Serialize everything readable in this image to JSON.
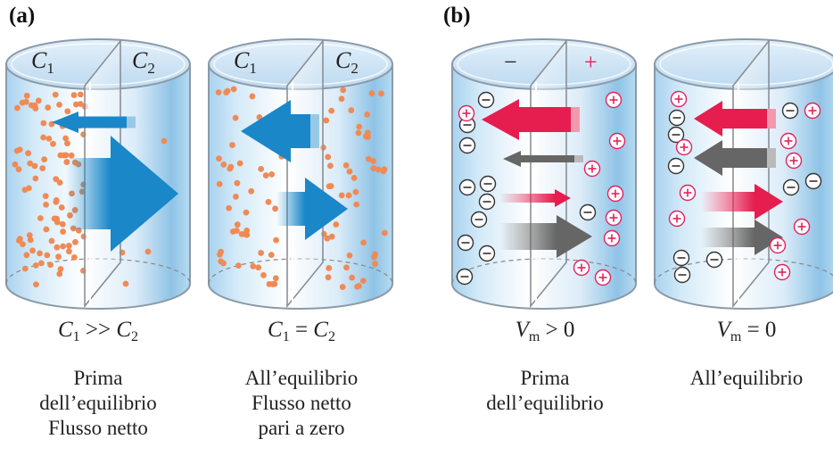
{
  "panels": {
    "a": {
      "letter": "(a)"
    },
    "b": {
      "letter": "(b)"
    }
  },
  "cylinders": [
    {
      "left_label": "C",
      "left_sub": "1",
      "right_label": "C",
      "right_sub": "2",
      "equation": {
        "lhs": "C",
        "lhs_sub": "1",
        "op": ">>",
        "rhs": "C",
        "rhs_sub": "2"
      },
      "caption": [
        "Prima",
        "dell’equilibrio",
        "Flusso netto"
      ]
    },
    {
      "left_label": "C",
      "left_sub": "1",
      "right_label": "C",
      "right_sub": "2",
      "equation": {
        "lhs": "C",
        "lhs_sub": "1",
        "op": "=",
        "rhs": "C",
        "rhs_sub": "2"
      },
      "caption": [
        "All’equilibrio",
        "Flusso netto",
        "pari a zero"
      ]
    },
    {
      "left_label": "−",
      "right_label": "+",
      "equation": {
        "lhs": "V",
        "lhs_sub": "m",
        "op": ">",
        "rhs": "0"
      },
      "caption": [
        "Prima",
        "dell’equilibrio"
      ]
    },
    {
      "equation": {
        "lhs": "V",
        "lhs_sub": "m",
        "op": "=",
        "rhs": "0"
      },
      "caption": [
        "All’equilibrio"
      ]
    }
  ],
  "ion_symbols": {
    "negative": "−",
    "positive": "+"
  },
  "colors": {
    "particle": "#f08a55",
    "blue_arrow": "#1a87c9",
    "red_arrow": "#e51e4f",
    "gray_arrow": "#666666",
    "positive_ion": "#e0245e",
    "negative_ion": "#333333",
    "glass": "#cfe4f4"
  }
}
